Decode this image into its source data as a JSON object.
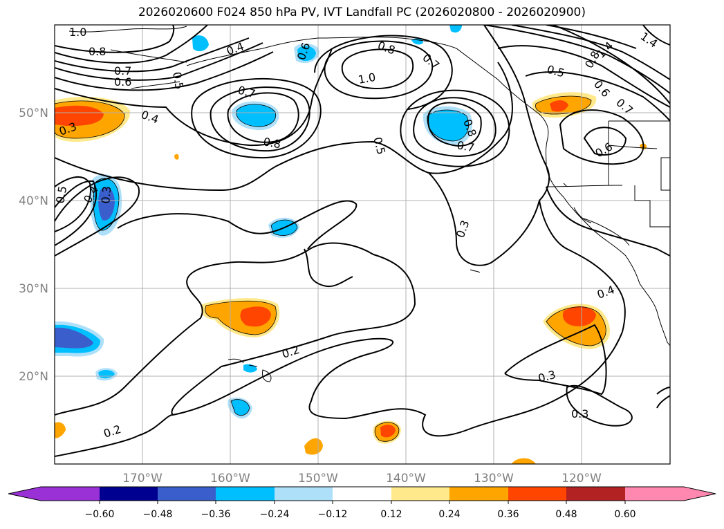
{
  "title": "2026020600 F024 850 hPa PV, IVT Landfall PC (2026020800 - 2026020900)",
  "lat_labels": [
    "50°N",
    "40°N",
    "30°N",
    "20°N"
  ],
  "lon_labels": [
    "170°W",
    "160°W",
    "150°W",
    "140°W",
    "130°W",
    "120°W"
  ],
  "contour_labels": [
    "1.0",
    "0.8",
    "0.7",
    "0.6",
    "0.4",
    "0.5",
    "0.6",
    "0.8",
    "1.0",
    "0.7",
    "0.7",
    "0.8",
    "0.4",
    "0.3",
    "0.5",
    "0.4",
    "0.3",
    "0.5",
    "0.8",
    "0.7",
    "0.5",
    "0.8",
    "0.6",
    "1.4",
    "0.7",
    "1.4",
    "0.6",
    "0.3",
    "0.4",
    "0.2",
    "0.2",
    "0.3",
    "0.3",
    "1.0"
  ],
  "colorbar": {
    "ticks": [
      "−0.60",
      "−0.48",
      "−0.36",
      "−0.24",
      "−0.12",
      "0.12",
      "0.24",
      "0.36",
      "0.48",
      "0.60"
    ],
    "colors": [
      "#9a31d6",
      "#000090",
      "#3a5fcd",
      "#00bfff",
      "#aee0fa",
      "#ffffff",
      "#ffe98a",
      "#ffa500",
      "#ff4500",
      "#b22222",
      "#ff88b0"
    ]
  },
  "icons": [
    "coastline-map",
    "colorbar-extend-arrows"
  ]
}
